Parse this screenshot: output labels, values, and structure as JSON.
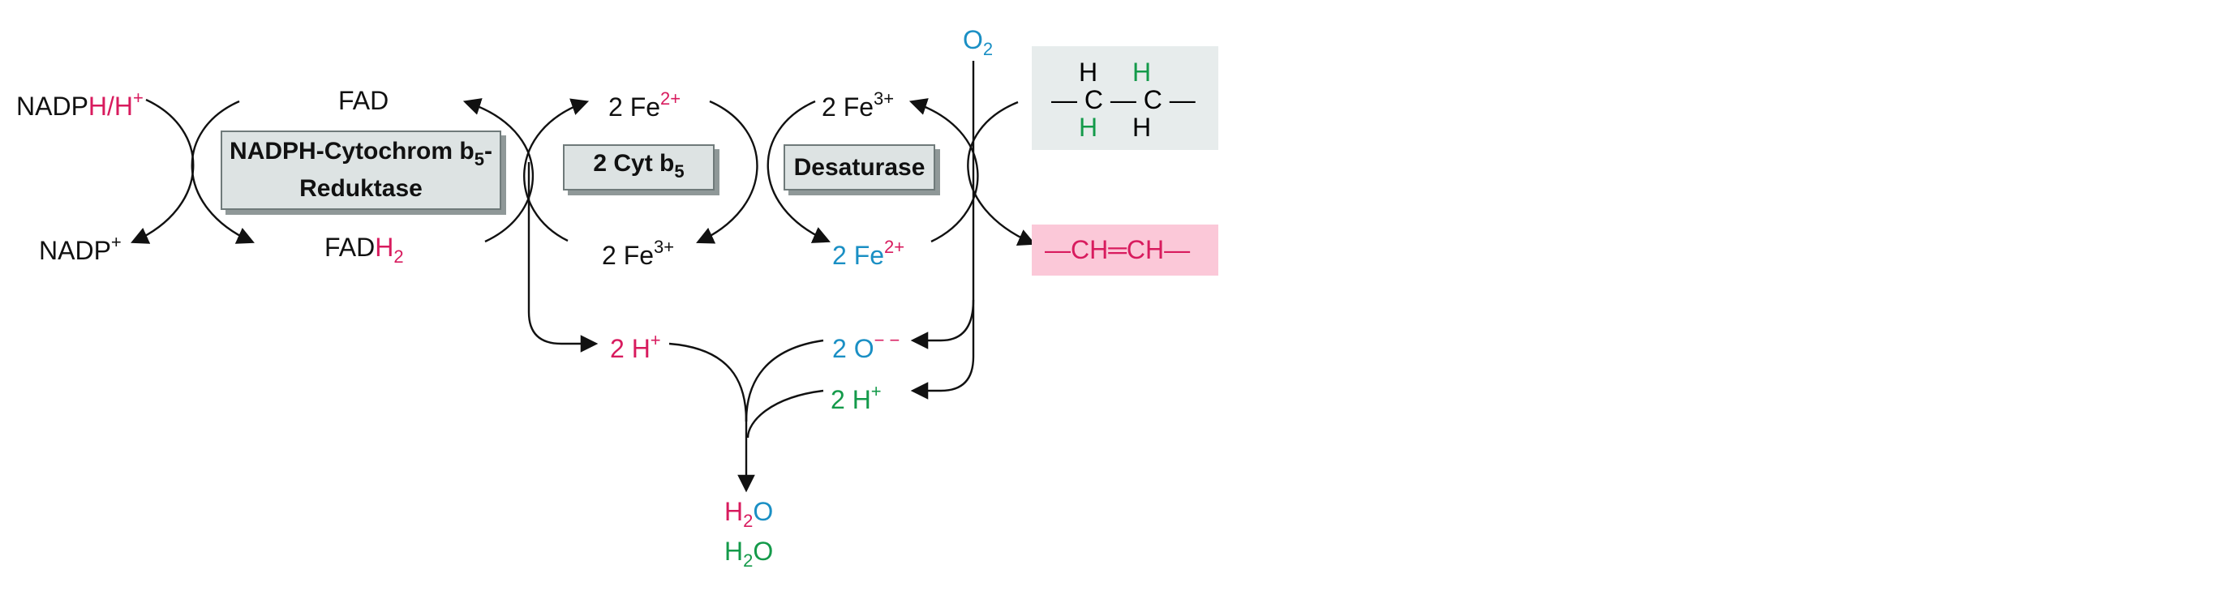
{
  "labels": {
    "nadph_left": "NADP",
    "nadph_h": "H",
    "nadph_slash": "/",
    "nadph_h2": "H",
    "nadph_plus": "+",
    "nadp": "NADP",
    "nadp_plus": "+",
    "fad": "FAD",
    "fadh2_fad": "FAD",
    "fadh2_h": "H",
    "fadh2_2": "2",
    "fe2_top": "2 Fe",
    "fe2_top_charge": "2+",
    "fe3_bottom": "2 Fe",
    "fe3_bottom_charge": "3+",
    "fe3_top": "2 Fe",
    "fe3_top_charge": "3+",
    "fe2_bottom": "2 Fe",
    "fe2_bottom_charge": "2+",
    "o2": "O",
    "o2_sub": "2",
    "h_plus_left": "2 H",
    "h_plus_left_charge": "+",
    "o_minus": "2 O",
    "o_minus_charge": "− −",
    "h_plus_right": "2 H",
    "h_plus_right_charge": "+",
    "water1_h": "H",
    "water1_sub": "2",
    "water1_o": "O",
    "water2_h": "H",
    "water2_sub": "2",
    "water2_o": "O"
  },
  "boxes": {
    "reductase_line1": "NADPH-Cytochrom b",
    "reductase_line1_sub": "5",
    "reductase_line1_end": "-",
    "reductase_line2": "Reduktase",
    "cyt_b5": "2 Cyt b",
    "cyt_b5_sub": "5",
    "desaturase": "Desaturase"
  },
  "structures": {
    "substrate_h_top_left": "H",
    "substrate_h_top_right": "H",
    "substrate_chain": "— C — C —",
    "substrate_h_bottom_left": "H",
    "substrate_h_bottom_right": "H",
    "product": "—CH═CH—"
  },
  "colors": {
    "pink": "#d81b5e",
    "blue": "#1a8fc4",
    "green": "#149a4a",
    "box_fill": "#dde3e3",
    "substrate_panel": "#e7ecec",
    "product_panel": "#fbc8d8"
  }
}
